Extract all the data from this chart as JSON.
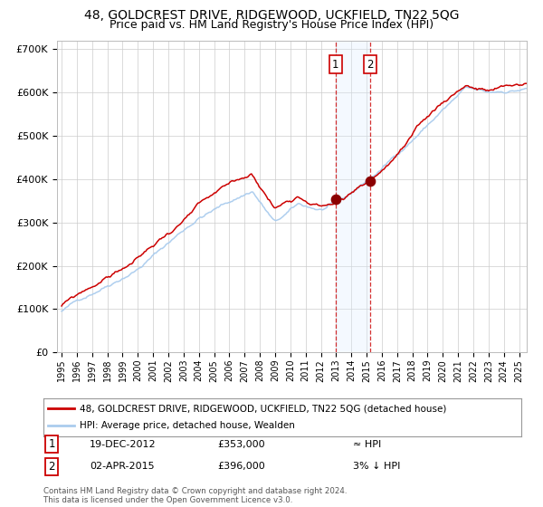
{
  "title": "48, GOLDCREST DRIVE, RIDGEWOOD, UCKFIELD, TN22 5QG",
  "subtitle": "Price paid vs. HM Land Registry's House Price Index (HPI)",
  "ylabel_ticks": [
    "£0",
    "£100K",
    "£200K",
    "£300K",
    "£400K",
    "£500K",
    "£600K",
    "£700K"
  ],
  "ytick_values": [
    0,
    100000,
    200000,
    300000,
    400000,
    500000,
    600000,
    700000
  ],
  "ylim": [
    0,
    720000
  ],
  "xlim_start": 1994.7,
  "xlim_end": 2025.5,
  "sale1_x": 2012.97,
  "sale1_y": 353000,
  "sale2_x": 2015.25,
  "sale2_y": 396000,
  "sale1_label": "1",
  "sale2_label": "2",
  "legend_line1": "48, GOLDCREST DRIVE, RIDGEWOOD, UCKFIELD, TN22 5QG (detached house)",
  "legend_line2": "HPI: Average price, detached house, Wealden",
  "table_row1": [
    "1",
    "19-DEC-2012",
    "£353,000",
    "≈ HPI"
  ],
  "table_row2": [
    "2",
    "02-APR-2015",
    "£396,000",
    "3% ↓ HPI"
  ],
  "footnote": "Contains HM Land Registry data © Crown copyright and database right 2024.\nThis data is licensed under the Open Government Licence v3.0.",
  "line_color_red": "#cc0000",
  "line_color_blue": "#aaccee",
  "dot_color": "#8B0000",
  "shade_color": "#ddeeff",
  "vline_color": "#cc0000",
  "grid_color": "#cccccc",
  "bg_color": "#ffffff",
  "title_fontsize": 10,
  "subtitle_fontsize": 9
}
